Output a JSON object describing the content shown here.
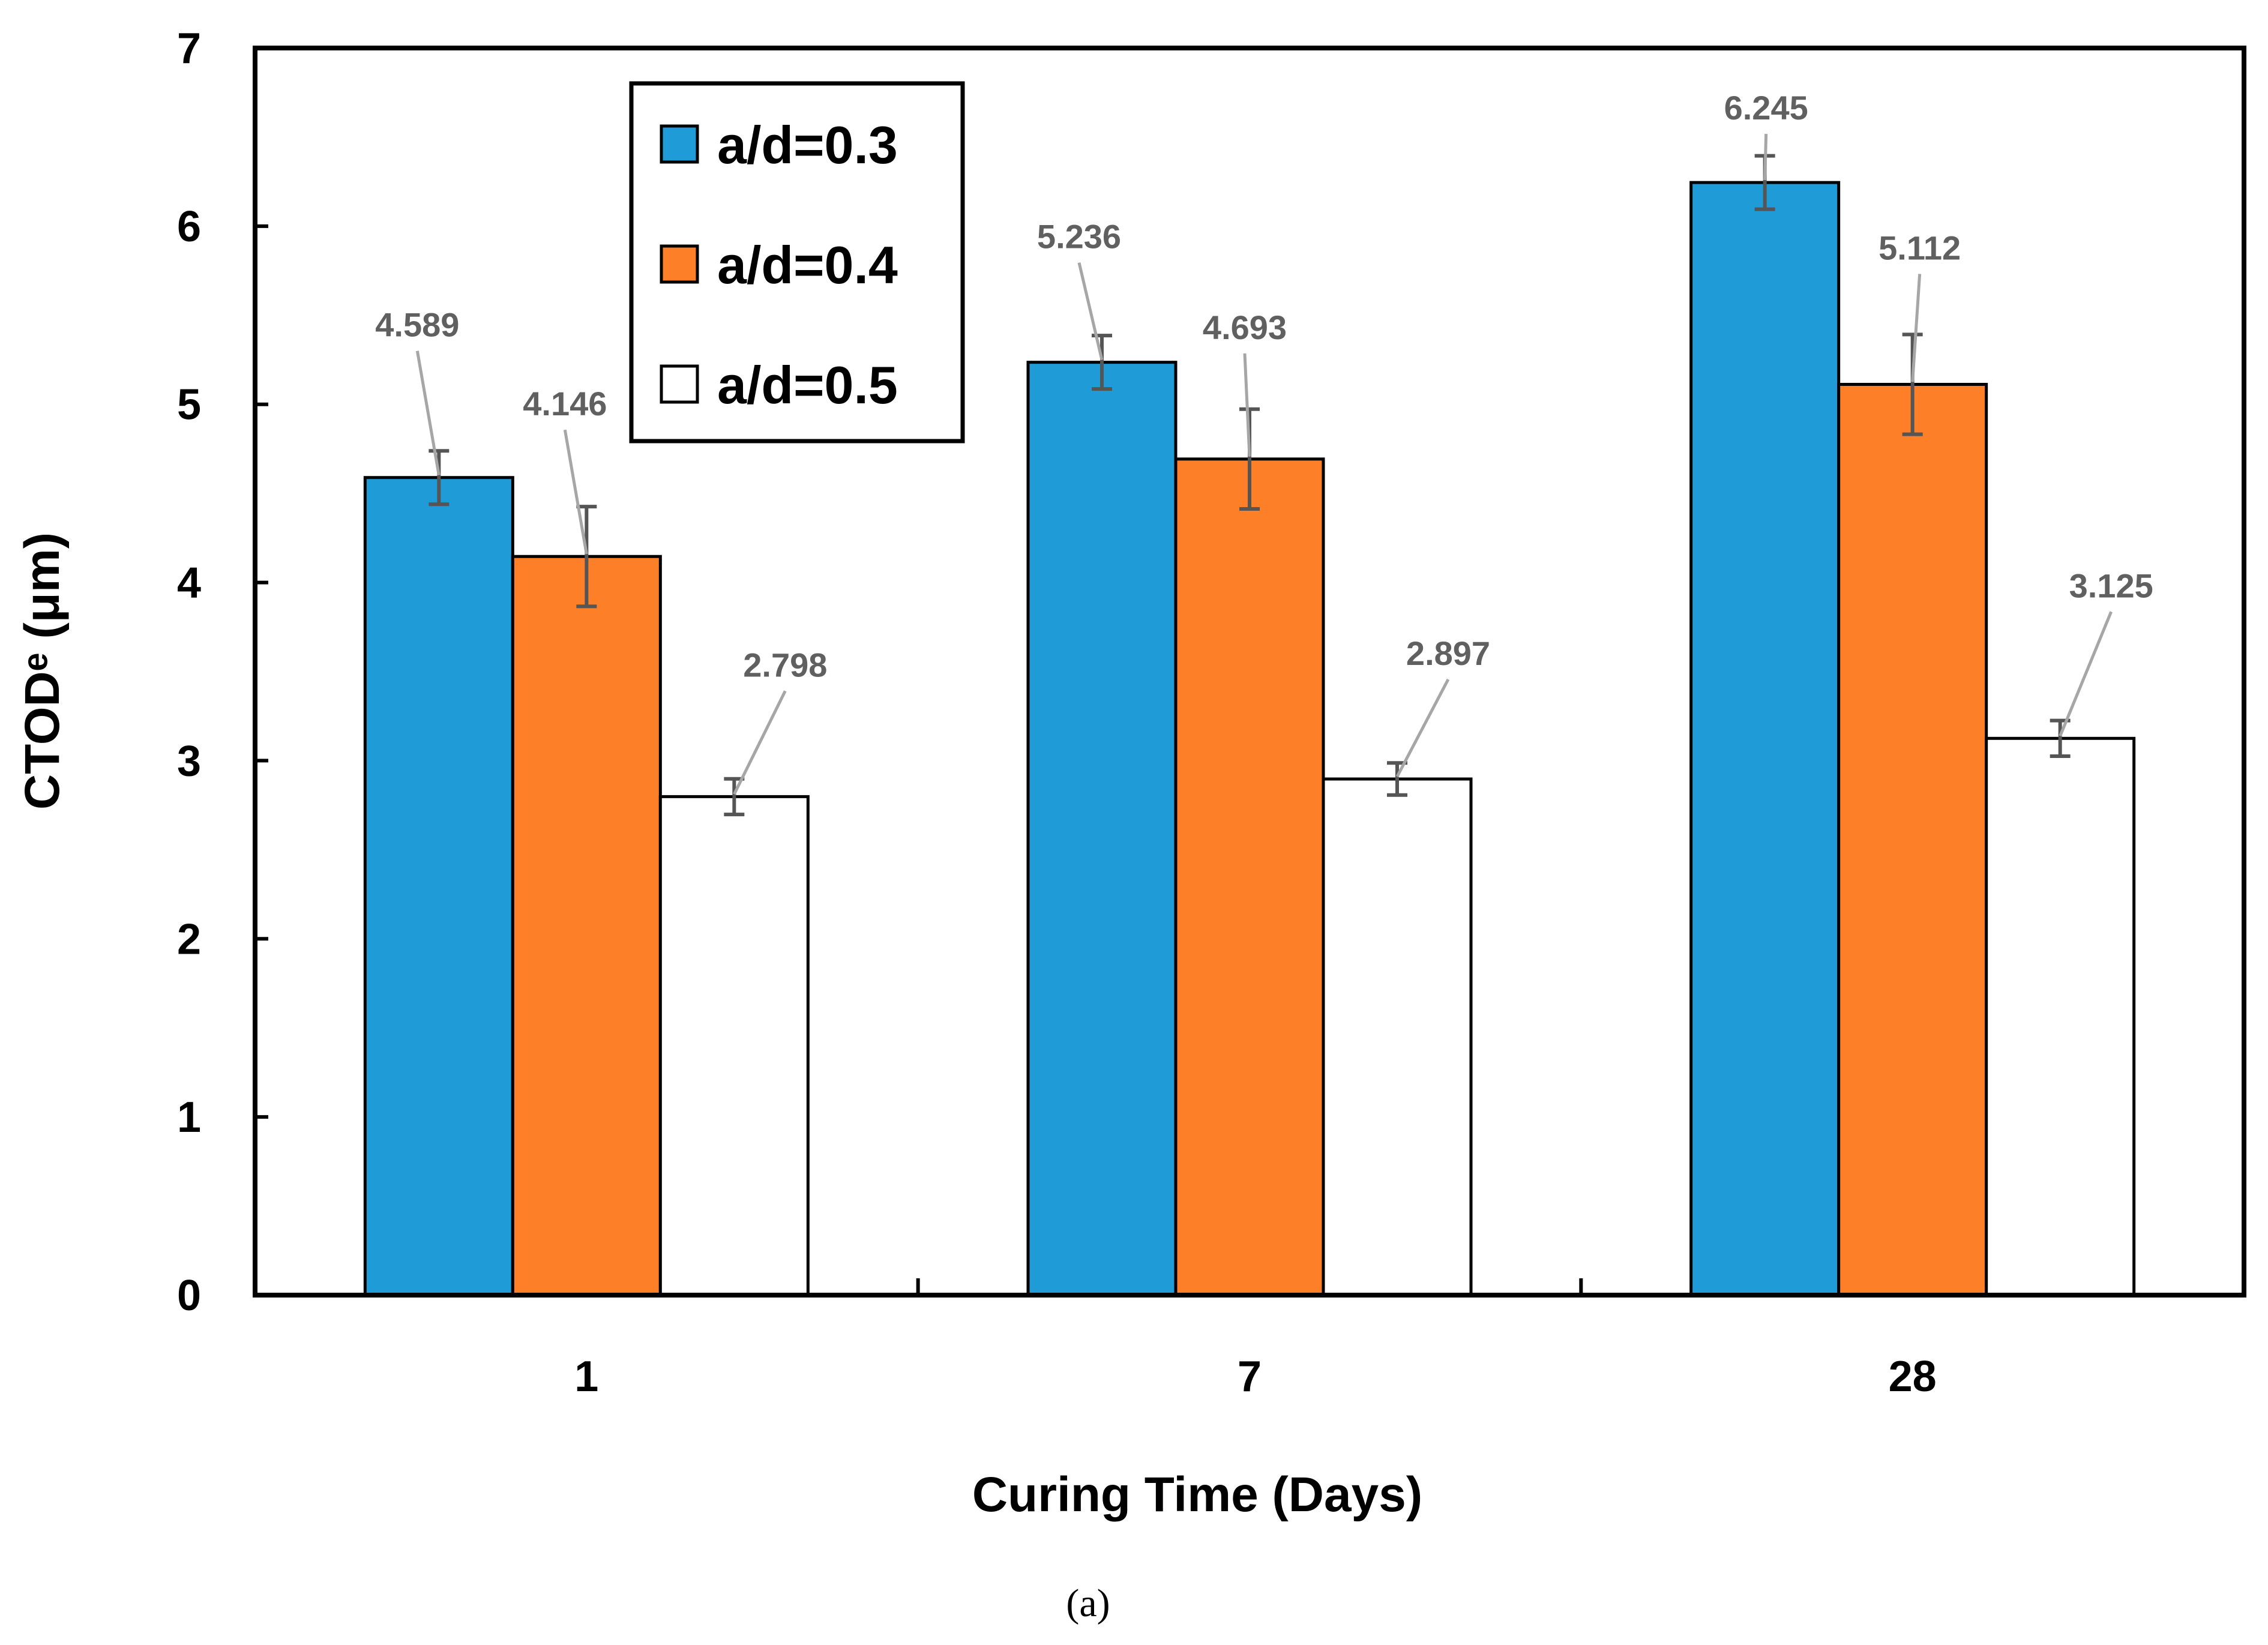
{
  "chart_data": {
    "type": "bar",
    "categories": [
      "1",
      "7",
      "28"
    ],
    "series": [
      {
        "name": "a/d=0.3",
        "color": "#1f9bd7",
        "values": [
          4.589,
          5.236,
          6.245
        ],
        "errors": [
          0.15,
          0.15,
          0.15
        ],
        "labels": [
          "4.589",
          "5.236",
          "6.245"
        ]
      },
      {
        "name": "a/d=0.4",
        "color": "#fd7f28",
        "values": [
          4.146,
          4.693,
          5.112
        ],
        "errors": [
          0.28,
          0.28,
          0.28
        ],
        "labels": [
          "4.146",
          "4.693",
          "5.112"
        ]
      },
      {
        "name": "a/d=0.5",
        "color": "#ffffff",
        "values": [
          2.798,
          2.897,
          3.125
        ],
        "errors": [
          0.1,
          0.09,
          0.1
        ],
        "labels": [
          "2.798",
          "2.897",
          "3.125"
        ]
      }
    ],
    "xlabel": "Curing Time (Days)",
    "ylabel": "CTODᵉ (μm)",
    "ylim": [
      0,
      7
    ],
    "yticks": [
      "0",
      "1",
      "2",
      "3",
      "4",
      "5",
      "6",
      "7"
    ],
    "legend_position": "top-left",
    "grid": false
  },
  "caption": "(a)"
}
